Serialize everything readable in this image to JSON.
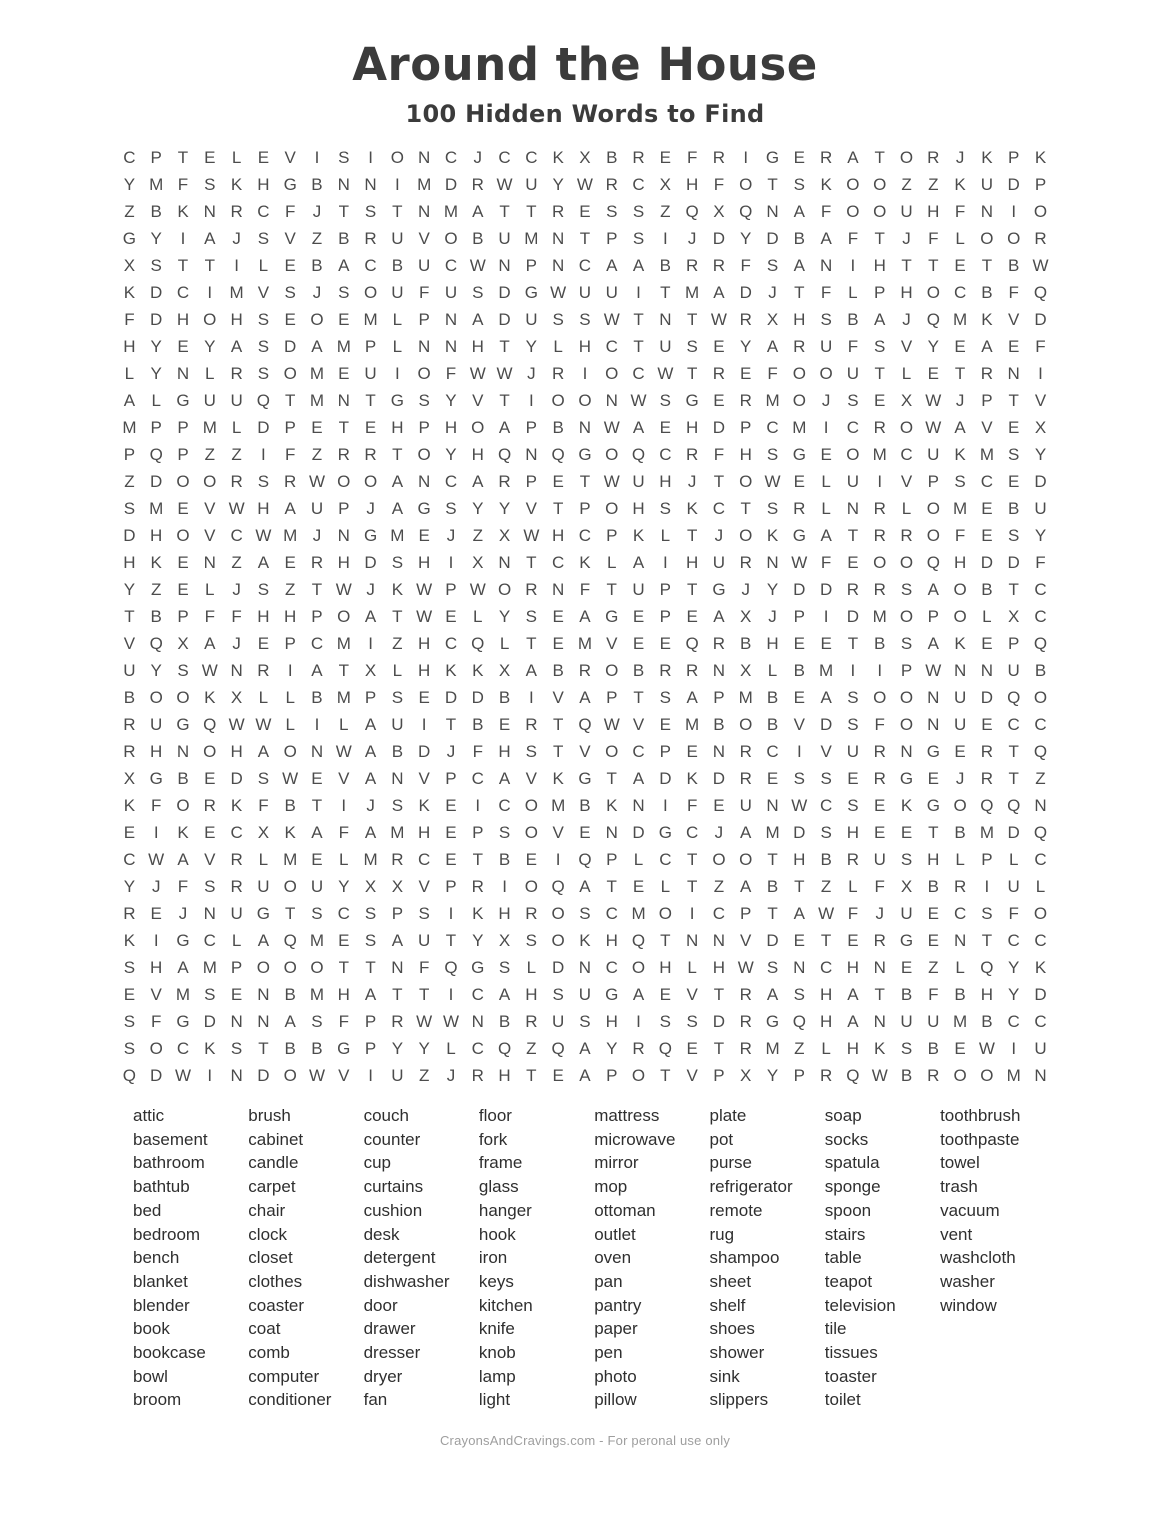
{
  "title": "Around the House",
  "subtitle": "100 Hidden Words to Find",
  "colors": {
    "ink": "#4c4c4c",
    "heading": "#3b3b3b",
    "footer": "#9e9e9e",
    "background": "#ffffff"
  },
  "grid": {
    "columns": 35,
    "rows": [
      "CPTELEVISIONCJCCKXBREFRIGERATORJKPK",
      "YMFSKHGBNNIMDRWUYWRCXHFOTSKOOZZKUDP",
      "ZBKNRCFJTSTNMATTRESSZQXQNAFOOUHFNIO",
      "GYIAJSVZBRUVOBUMNTPSIJDYDBAFTJFLOOR",
      "XSTTILEBACBUCWNPNCAABRRFSANIHTTETBW",
      "KDCIMVSJSOUFUSDGWUUITMADJTFLPHOCBFQ",
      "FDHOHSEOEMLPNADUSSWTNTWRXHSBAJQMKVD",
      "HYEYASDAMPLNNHTYLHCTUSEYARUFSVYEAEF",
      "LYNLRSOMEUIOFWWJRIOCWTREFOOUTLETRNI",
      "ALGUUQTMNTGSYVTIOONWSGERMOJSEXWJPTV",
      "MPPMLDPETEHPHOAPBNWAEHDPCMICROWAVEX",
      "PQPZZIFZRRTOYHQNQGOQCRFHSGEOMCUKMSY",
      "ZDOORSRWOOANCARPETWUHJTOWELUIVPSCED",
      "SMEVWHAUPJAGSYYVTPOHSKCTSRLNRLOMEBU",
      "DHOVCWMJNGMEJZXWHCPKLTJOKGATRROFESY",
      "HKENZAERHDSHIXNTCKLAIHURNWFEOOQHDDF",
      "YZELJSZTWJKWPWORNFTUPTGJYDDRRSAOBTC",
      "TBPFFHHPOATWELYSEAGEPEAXJPIDMOPOLXC",
      "VQXAJEPCMIZHCQLTEMVEEQRBHEETBSAKEPQ",
      "UYSWNRIATXLHKKXABROBRRNXLBMIIPWNNUB",
      "BOOKXLLBMPSEDDBIVAPTSAPMBEASOONUDQO",
      "RUGQWWLILAUITBERTQWVEMBOBVDSFONUECC",
      "RHNOHAONWABDJFHSTVOCPENRCIVURNGERTQ",
      "XGBEDSWEVANVPCAVKGTADKDRESSERGEJRTZ",
      "KFORKFBTIJSKEICOMBKNIFEUNWCSEKGOQQN",
      "EIKECXKAFAMHEPSOVENDGCJAMDSHEETBMDQ",
      "CWAVRLMELMRCETBEIQPLCTOOTHBRUSHLPLC",
      "YJFSRUOUYXXVPRIOQATELTZABTZLFXBRIUL",
      "REJNUGTSCSPSIKHROSCMOICPTAWFJUECSFO",
      "KIGCLAQMESAUTYXSOKHQTNNVDETERGENTCC",
      "SHAMPOOOTTNFQGSLDNCOHLHWSNCHNEZLQYK",
      "EVMSENBMHATTICAHSUGAEVTRASHATBFBHYD",
      "SFGDNNASFPRWWNBRUSHISSDRGQHANUUMBCC",
      "SOCKSTBBGPYYLCQZQAYRQETRMZLHKSBEWIU",
      "QDWINDOWVIUZJRHTEAPOTVPXYPRQWBROOMN"
    ]
  },
  "word_list": {
    "columns": [
      [
        "attic",
        "basement",
        "bathroom",
        "bathtub",
        "bed",
        "bedroom",
        "bench",
        "blanket",
        "blender",
        "book",
        "bookcase",
        "bowl",
        "broom"
      ],
      [
        "brush",
        "cabinet",
        "candle",
        "carpet",
        "chair",
        "clock",
        "closet",
        "clothes",
        "coaster",
        "coat",
        "comb",
        "computer",
        "conditioner"
      ],
      [
        "couch",
        "counter",
        "cup",
        "curtains",
        "cushion",
        "desk",
        "detergent",
        "dishwasher",
        "door",
        "drawer",
        "dresser",
        "dryer",
        "fan"
      ],
      [
        "floor",
        "fork",
        "frame",
        "glass",
        "hanger",
        "hook",
        "iron",
        "keys",
        "kitchen",
        "knife",
        "knob",
        "lamp",
        "light"
      ],
      [
        "mattress",
        "microwave",
        "mirror",
        "mop",
        "ottoman",
        "outlet",
        "oven",
        "pan",
        "pantry",
        "paper",
        "pen",
        "photo",
        "pillow"
      ],
      [
        "plate",
        "pot",
        "purse",
        "refrigerator",
        "remote",
        "rug",
        "shampoo",
        "sheet",
        "shelf",
        "shoes",
        "shower",
        "sink",
        "slippers"
      ],
      [
        "soap",
        "socks",
        "spatula",
        "sponge",
        "spoon",
        "stairs",
        "table",
        "teapot",
        "television",
        "tile",
        "tissues",
        "toaster",
        "toilet"
      ],
      [
        "toothbrush",
        "toothpaste",
        "towel",
        "trash",
        "vacuum",
        "vent",
        "washcloth",
        "washer",
        "window"
      ]
    ]
  },
  "footer": {
    "text": "CrayonsAndCravings.com - For peronal use only"
  }
}
